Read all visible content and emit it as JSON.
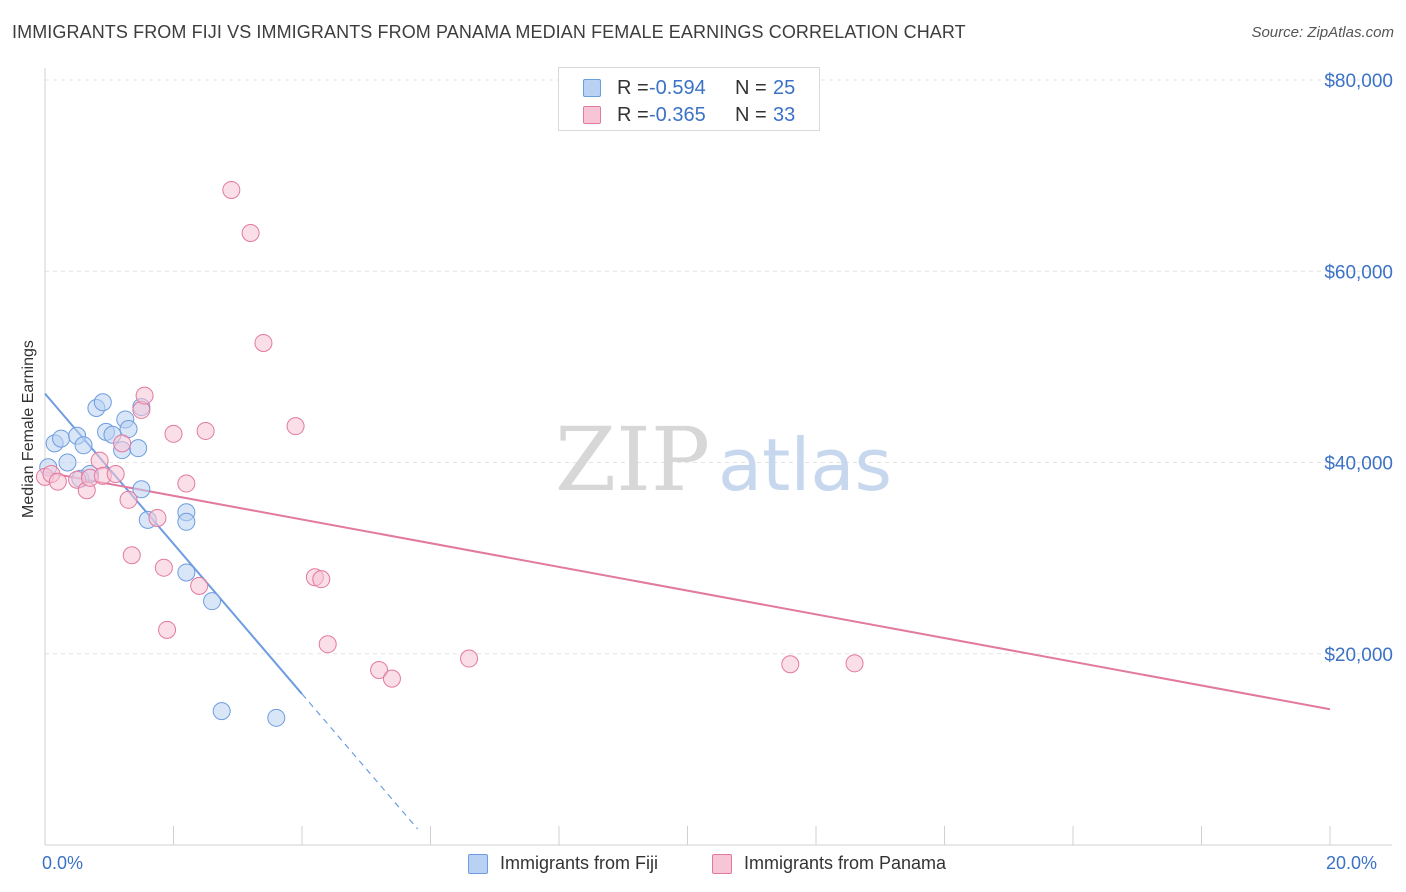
{
  "title": "IMMIGRANTS FROM FIJI VS IMMIGRANTS FROM PANAMA MEDIAN FEMALE EARNINGS CORRELATION CHART",
  "source": "Source: ZipAtlas.com",
  "watermark": {
    "zip": "ZIP",
    "atlas": "atlas"
  },
  "stats": [
    {
      "r_label": "R = ",
      "r_value": "-0.594",
      "n_label": "N = ",
      "n_value": "25"
    },
    {
      "r_label": "R = ",
      "r_value": "-0.365",
      "n_label": "N = ",
      "n_value": "33"
    }
  ],
  "legend": [
    "Immigrants from Fiji",
    "Immigrants from Panama"
  ],
  "x_axis_labels": {
    "min": "0.0%",
    "max": "20.0%"
  },
  "chart_data": {
    "type": "scatter",
    "title": "IMMIGRANTS FROM FIJI VS IMMIGRANTS FROM PANAMA MEDIAN FEMALE EARNINGS CORRELATION CHART",
    "xlabel": "",
    "ylabel": "Median Female Earnings",
    "xlim": [
      0,
      20
    ],
    "ylim": [
      0,
      80000
    ],
    "y_ticks": [
      20000,
      40000,
      60000,
      80000
    ],
    "y_tick_labels": [
      "$20,000",
      "$40,000",
      "$60,000",
      "$80,000"
    ],
    "x_tick_labels": [
      "0.0%",
      "20.0%"
    ],
    "legend_position": "bottom-center",
    "series": [
      {
        "name": "Immigrants from Fiji",
        "color": "#6d9de0",
        "fill": "#b9d2f3",
        "r": -0.594,
        "n": 25,
        "points": [
          [
            0.05,
            39500
          ],
          [
            0.15,
            42000
          ],
          [
            0.25,
            42500
          ],
          [
            0.35,
            40000
          ],
          [
            0.5,
            42800
          ],
          [
            0.55,
            38300
          ],
          [
            0.6,
            41800
          ],
          [
            0.7,
            38800
          ],
          [
            0.8,
            45700
          ],
          [
            0.9,
            46300
          ],
          [
            0.95,
            43200
          ],
          [
            1.05,
            42900
          ],
          [
            1.2,
            41300
          ],
          [
            1.25,
            44500
          ],
          [
            1.3,
            43500
          ],
          [
            1.5,
            45800
          ],
          [
            1.45,
            41500
          ],
          [
            1.5,
            37200
          ],
          [
            1.6,
            34000
          ],
          [
            2.2,
            34800
          ],
          [
            2.2,
            33800
          ],
          [
            2.2,
            28500
          ],
          [
            2.6,
            25500
          ],
          [
            2.75,
            14000
          ],
          [
            3.6,
            13300
          ]
        ],
        "trend": {
          "x1": 0.0,
          "y1": 47200,
          "x2": 4.0,
          "y2": 15800,
          "dashed_to_x": 5.8
        }
      },
      {
        "name": "Immigrants from Panama",
        "color": "#e2799e",
        "fill": "#f7c5d6",
        "r": -0.365,
        "n": 33,
        "points": [
          [
            0.0,
            38500
          ],
          [
            0.1,
            38800
          ],
          [
            0.2,
            38000
          ],
          [
            0.5,
            38200
          ],
          [
            0.65,
            37100
          ],
          [
            0.7,
            38400
          ],
          [
            0.85,
            40200
          ],
          [
            0.9,
            38600
          ],
          [
            1.1,
            38800
          ],
          [
            1.2,
            42000
          ],
          [
            1.3,
            36100
          ],
          [
            1.35,
            30300
          ],
          [
            1.5,
            45500
          ],
          [
            1.55,
            47000
          ],
          [
            1.75,
            34200
          ],
          [
            1.85,
            29000
          ],
          [
            1.9,
            22500
          ],
          [
            2.0,
            43000
          ],
          [
            2.2,
            37800
          ],
          [
            2.4,
            27100
          ],
          [
            2.5,
            43300
          ],
          [
            2.9,
            68500
          ],
          [
            3.2,
            64000
          ],
          [
            3.4,
            52500
          ],
          [
            3.9,
            43800
          ],
          [
            4.2,
            28000
          ],
          [
            4.3,
            27800
          ],
          [
            4.4,
            21000
          ],
          [
            5.2,
            18300
          ],
          [
            5.4,
            17400
          ],
          [
            6.6,
            19500
          ],
          [
            11.6,
            18900
          ],
          [
            12.6,
            19000
          ]
        ],
        "trend": {
          "x1": 0.0,
          "y1": 39000,
          "x2": 20.0,
          "y2": 14200
        }
      }
    ]
  }
}
